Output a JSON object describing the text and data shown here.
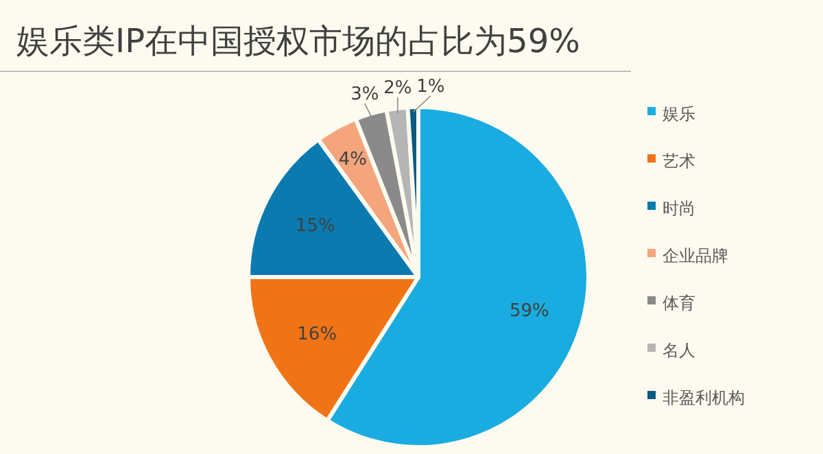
{
  "chart_data": {
    "type": "pie",
    "title": "娱乐类IP在中国授权市场的占比为59%",
    "categories": [
      "娱乐",
      "艺术",
      "时尚",
      "企业品牌",
      "体育",
      "名人",
      "非盈利机构"
    ],
    "values": [
      59,
      16,
      15,
      4,
      3,
      2,
      1
    ],
    "value_labels": [
      "59%",
      "16%",
      "15%",
      "4%",
      "3%",
      "2%",
      "1%"
    ],
    "colors": [
      "#1aace0",
      "#f07416",
      "#0a7ab0",
      "#f4a57c",
      "#8a8a8a",
      "#b5b5b5",
      "#0d5a80"
    ],
    "data_labels": true,
    "legend": "right"
  }
}
